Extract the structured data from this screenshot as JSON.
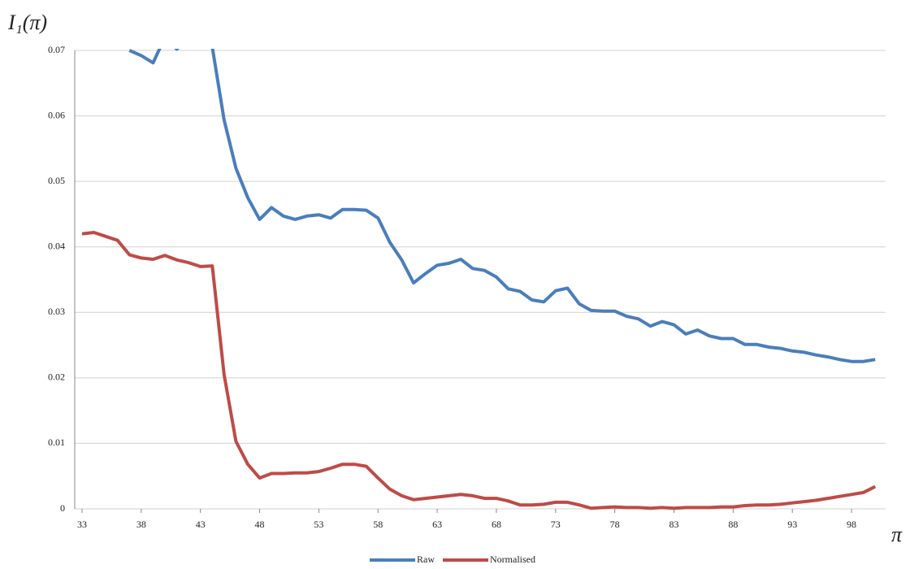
{
  "chart_data": {
    "type": "line",
    "x_label": "π",
    "y_label": "I₁(π)",
    "x": [
      33,
      34,
      35,
      36,
      37,
      38,
      39,
      40,
      41,
      42,
      43,
      44,
      45,
      46,
      47,
      48,
      49,
      50,
      51,
      52,
      53,
      54,
      55,
      56,
      57,
      58,
      59,
      60,
      61,
      62,
      63,
      64,
      65,
      66,
      67,
      68,
      69,
      70,
      71,
      72,
      73,
      74,
      75,
      76,
      77,
      78,
      79,
      80,
      81,
      82,
      83,
      84,
      85,
      86,
      87,
      88,
      89,
      90,
      91,
      92,
      93,
      94,
      95,
      96,
      97,
      98,
      99,
      100
    ],
    "series": [
      {
        "name": "Raw",
        "color": "#4a7ebb",
        "values": [
          null,
          null,
          null,
          null,
          0.07,
          0.0692,
          0.0681,
          0.072,
          0.0702,
          0.072,
          0.074,
          0.0705,
          0.0594,
          0.052,
          0.0475,
          0.0442,
          0.046,
          0.0447,
          0.0442,
          0.0447,
          0.0449,
          0.0444,
          0.0457,
          0.0457,
          0.0456,
          0.0444,
          0.0407,
          0.038,
          0.0345,
          0.0359,
          0.0372,
          0.0375,
          0.0381,
          0.0367,
          0.0364,
          0.0354,
          0.0336,
          0.0332,
          0.0319,
          0.0316,
          0.0333,
          0.0337,
          0.0313,
          0.0303,
          0.0302,
          0.0302,
          0.0294,
          0.029,
          0.0279,
          0.0286,
          0.0281,
          0.0267,
          0.0273,
          0.0264,
          0.026,
          0.026,
          0.0251,
          0.0251,
          0.0247,
          0.0245,
          0.0241,
          0.0239,
          0.0235,
          0.0232,
          0.0228,
          0.0225,
          0.0225,
          0.0228
        ]
      },
      {
        "name": "Normalised",
        "color": "#be4b48",
        "values": [
          0.042,
          0.0422,
          0.0416,
          0.041,
          0.0388,
          0.0383,
          0.0381,
          0.0387,
          0.038,
          0.0376,
          0.037,
          0.0371,
          0.0205,
          0.0103,
          0.0068,
          0.0047,
          0.0054,
          0.0054,
          0.0055,
          0.0055,
          0.0057,
          0.0062,
          0.0068,
          0.0068,
          0.0065,
          0.0047,
          0.003,
          0.002,
          0.0014,
          0.0016,
          0.0018,
          0.002,
          0.0022,
          0.002,
          0.0016,
          0.0016,
          0.0012,
          0.0006,
          0.0006,
          0.0007,
          0.001,
          0.001,
          0.0006,
          0.0001,
          0.0002,
          0.0003,
          0.0002,
          0.0002,
          0.0001,
          0.0002,
          0.0001,
          0.0002,
          0.0002,
          0.0002,
          0.0003,
          0.0003,
          0.0005,
          0.0006,
          0.0006,
          0.0007,
          0.0009,
          0.0011,
          0.0013,
          0.0016,
          0.0019,
          0.0022,
          0.0025,
          0.0034
        ]
      }
    ],
    "xlim": [
      33,
      101
    ],
    "xticks": [
      33,
      38,
      43,
      48,
      53,
      58,
      63,
      68,
      73,
      78,
      83,
      88,
      93,
      98
    ],
    "ylim": [
      0,
      0.07
    ],
    "yticks": [
      0,
      0.01,
      0.02,
      0.03,
      0.04,
      0.05,
      0.06,
      0.07
    ],
    "grid": true,
    "legend": "bottom"
  }
}
